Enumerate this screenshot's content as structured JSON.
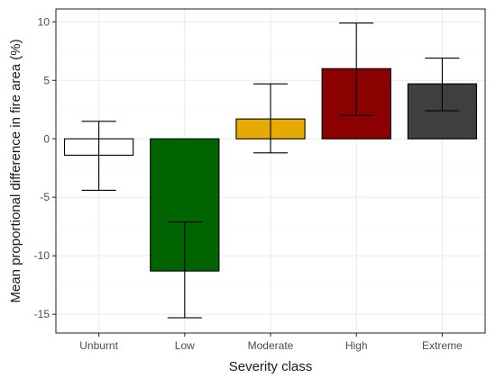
{
  "chart_data": {
    "type": "bar",
    "title": "",
    "xlabel": "Severity class",
    "ylabel": "Mean proportional difference in fire area (%)",
    "categories": [
      "Unburnt",
      "Low",
      "Moderate",
      "High",
      "Extreme"
    ],
    "values": [
      -1.4,
      -11.3,
      1.7,
      6.0,
      4.7
    ],
    "error_upper": [
      1.5,
      -7.1,
      4.7,
      9.9,
      6.9
    ],
    "error_lower": [
      -4.4,
      -15.3,
      -1.2,
      2.0,
      2.4
    ],
    "colors": [
      "#ffffff",
      "#006400",
      "#e6ab02",
      "#8b0000",
      "#3f3f3f"
    ],
    "ylim": [
      -16.6,
      11.1
    ],
    "yticks": [
      -15,
      -10,
      -5,
      0,
      5,
      10
    ],
    "yticks_labels": [
      "-15",
      "-10",
      "-5",
      "0",
      "5",
      "10"
    ],
    "grid": true
  }
}
